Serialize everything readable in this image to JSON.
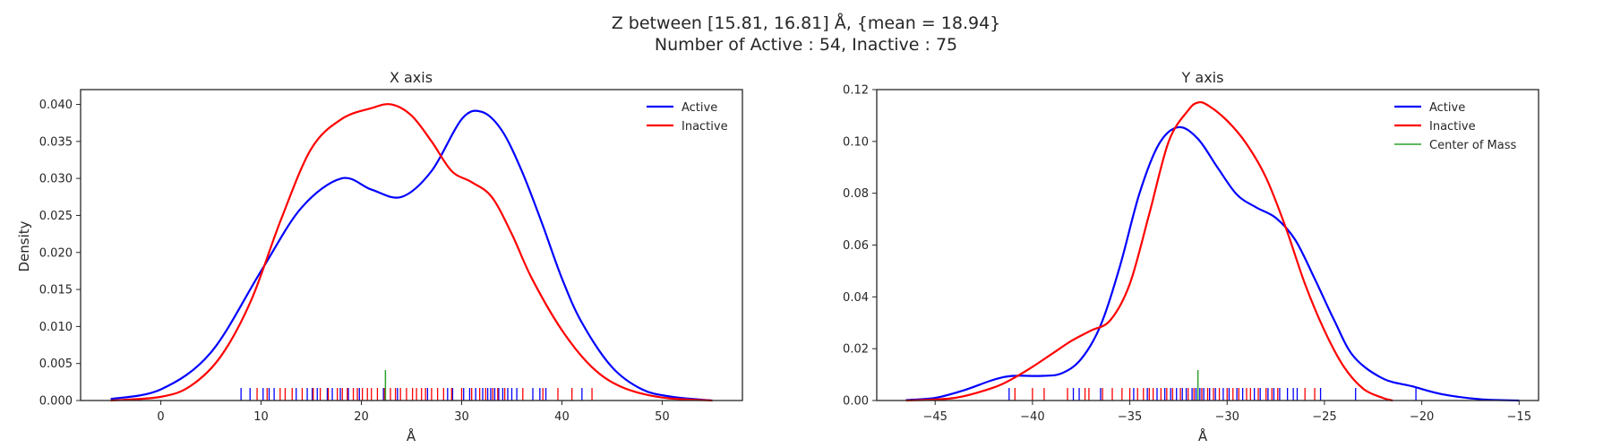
{
  "figure": {
    "title_line1": "Z between [15.81, 16.81] Å, {mean = 18.94}",
    "title_line2": "Number of Active : 54, Inactive : 75"
  },
  "colors": {
    "active": "#0000ff",
    "inactive": "#ff0000",
    "center": "#2ca02c"
  },
  "chart_data": [
    {
      "type": "line",
      "title": "X axis",
      "xlabel": "Å",
      "ylabel": "Density",
      "xlim": [
        -8,
        58
      ],
      "ylim": [
        0,
        0.042
      ],
      "xticks": [
        0,
        10,
        20,
        30,
        40,
        50
      ],
      "yticks": [
        0.0,
        0.005,
        0.01,
        0.015,
        0.02,
        0.025,
        0.03,
        0.035,
        0.04
      ],
      "ytick_labels": [
        "0.000",
        "0.005",
        "0.010",
        "0.015",
        "0.020",
        "0.025",
        "0.030",
        "0.035",
        "0.040"
      ],
      "xtick_labels": [
        "0",
        "10",
        "20",
        "30",
        "40",
        "50"
      ],
      "legend_position": "upper-right",
      "grid": false,
      "series": [
        {
          "name": "Active",
          "x": [
            -5,
            0,
            5,
            10,
            14,
            18,
            21,
            24,
            27,
            30,
            32,
            34,
            36,
            38,
            40,
            42,
            45,
            48,
            51,
            55
          ],
          "y": [
            0.0002,
            0.0015,
            0.0065,
            0.0175,
            0.026,
            0.03,
            0.0285,
            0.0275,
            0.031,
            0.038,
            0.039,
            0.0365,
            0.031,
            0.024,
            0.0165,
            0.0105,
            0.0045,
            0.0015,
            0.0005,
            0.0
          ]
        },
        {
          "name": "Inactive",
          "x": [
            -5,
            0,
            3,
            6,
            9,
            12,
            15,
            18,
            21,
            23,
            25,
            27,
            29,
            31,
            33,
            35,
            37,
            40,
            43,
            46,
            50,
            55
          ],
          "y": [
            0.0,
            0.0005,
            0.002,
            0.006,
            0.0135,
            0.0245,
            0.034,
            0.038,
            0.0395,
            0.04,
            0.0385,
            0.035,
            0.031,
            0.0295,
            0.0275,
            0.0225,
            0.0165,
            0.0095,
            0.0045,
            0.0018,
            0.0004,
            0.0
          ]
        }
      ],
      "rug": {
        "active": [
          8.0,
          8.9,
          10.2,
          10.8,
          11.3,
          13.5,
          14.6,
          15.1,
          15.6,
          16.6,
          17.1,
          17.9,
          18.7,
          19.8,
          22.2,
          23.6,
          26.6,
          28.6,
          29.1,
          30.2,
          30.8,
          31.4,
          32.1,
          32.6,
          32.9,
          33.3,
          33.7,
          34.1,
          34.6,
          35.0,
          35.5,
          37.1,
          37.8,
          38.4,
          42.0
        ],
        "inactive": [
          9.6,
          10.6,
          11.9,
          12.4,
          13.1,
          14.1,
          15.2,
          15.9,
          16.7,
          17.6,
          18.1,
          18.6,
          19.2,
          19.6,
          20.1,
          20.6,
          21.0,
          21.6,
          22.3,
          22.9,
          23.4,
          23.9,
          24.5,
          25.1,
          25.5,
          26.0,
          26.4,
          27.0,
          27.6,
          28.2,
          29.0,
          30.0,
          31.0,
          31.8,
          32.4,
          33.1,
          33.6,
          34.3,
          36.1,
          38.1,
          39.6,
          41.0,
          43.0
        ],
        "center_of_mass": [
          22.4
        ]
      }
    },
    {
      "type": "line",
      "title": "Y axis",
      "xlabel": "Å",
      "ylabel": "",
      "xlim": [
        -48,
        -14
      ],
      "ylim": [
        0,
        0.12
      ],
      "xticks": [
        -45,
        -40,
        -35,
        -30,
        -25,
        -20,
        -15
      ],
      "xtick_labels": [
        "−45",
        "−40",
        "−35",
        "−30",
        "−25",
        "−20",
        "−15"
      ],
      "yticks": [
        0.0,
        0.02,
        0.04,
        0.06,
        0.08,
        0.1,
        0.12
      ],
      "ytick_labels": [
        "0.00",
        "0.02",
        "0.04",
        "0.06",
        "0.08",
        "0.10",
        "0.12"
      ],
      "legend_position": "upper-right",
      "grid": false,
      "series": [
        {
          "name": "Active",
          "x": [
            -46.5,
            -45,
            -43.5,
            -42,
            -41,
            -39.5,
            -38.5,
            -37.5,
            -36.5,
            -35.5,
            -34.5,
            -33.5,
            -32.5,
            -31.5,
            -30.5,
            -29.5,
            -28.5,
            -27.5,
            -26.5,
            -25.5,
            -24.5,
            -23.5,
            -22,
            -20.5,
            -19,
            -17,
            -15
          ],
          "y": [
            0.0002,
            0.001,
            0.004,
            0.008,
            0.0095,
            0.0095,
            0.0105,
            0.016,
            0.029,
            0.052,
            0.08,
            0.099,
            0.1055,
            0.101,
            0.09,
            0.0795,
            0.0745,
            0.0705,
            0.062,
            0.047,
            0.031,
            0.017,
            0.0085,
            0.0055,
            0.0025,
            0.0005,
            0.0
          ]
        },
        {
          "name": "Inactive",
          "x": [
            -46.5,
            -44,
            -42,
            -41,
            -40,
            -39,
            -38,
            -37,
            -36,
            -35,
            -34,
            -33,
            -32,
            -31.5,
            -31,
            -30,
            -29,
            -28,
            -27,
            -26,
            -25,
            -24,
            -23,
            -22,
            -21.5
          ],
          "y": [
            0.0,
            0.001,
            0.005,
            0.0085,
            0.013,
            0.018,
            0.023,
            0.027,
            0.031,
            0.045,
            0.072,
            0.1,
            0.112,
            0.115,
            0.114,
            0.108,
            0.099,
            0.086,
            0.067,
            0.045,
            0.027,
            0.013,
            0.0045,
            0.001,
            0.0
          ]
        }
      ],
      "rug": {
        "active": [
          -41.2,
          -37.9,
          -37.6,
          -36.5,
          -34.8,
          -34.1,
          -33.6,
          -33.2,
          -32.9,
          -32.6,
          -32.3,
          -32.1,
          -31.8,
          -31.6,
          -31.4,
          -31.2,
          -30.9,
          -30.6,
          -30.2,
          -29.9,
          -29.5,
          -29.2,
          -28.6,
          -28.3,
          -27.9,
          -27.6,
          -27.3,
          -26.9,
          -26.6,
          -26.4,
          -25.2,
          -23.4,
          -20.3
        ],
        "inactive": [
          -40.9,
          -40.0,
          -39.4,
          -38.2,
          -37.3,
          -37.1,
          -36.4,
          -35.9,
          -35.4,
          -35.0,
          -34.6,
          -34.3,
          -34.0,
          -33.8,
          -33.4,
          -33.1,
          -32.8,
          -32.4,
          -32.0,
          -31.7,
          -31.3,
          -31.0,
          -30.7,
          -30.4,
          -30.0,
          -29.7,
          -29.4,
          -29.0,
          -28.8,
          -28.4,
          -28.0,
          -27.7,
          -27.4,
          -26.0,
          -25.5
        ],
        "center_of_mass": [
          -31.5
        ]
      }
    }
  ],
  "legend": {
    "active_label": "Active",
    "inactive_label": "Inactive",
    "center_label": "Center of Mass"
  }
}
